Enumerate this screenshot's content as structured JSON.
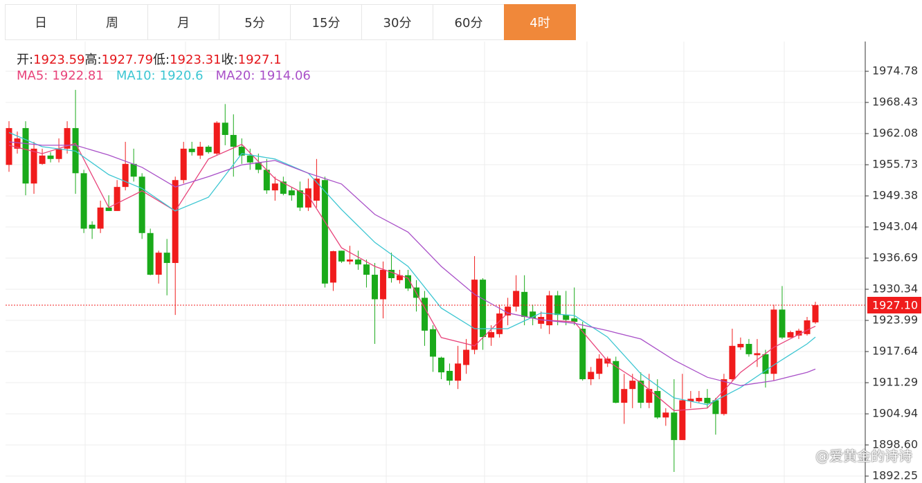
{
  "tabs": {
    "items": [
      "日",
      "周",
      "月",
      "5分",
      "15分",
      "30分",
      "60分",
      "4时"
    ],
    "active": 7
  },
  "header": {
    "ohlc": [
      {
        "label": "开:",
        "value": 1923.59
      },
      {
        "label": "高:",
        "value": 1927.79
      },
      {
        "label": "低:",
        "value": 1923.31
      },
      {
        "label": "收:",
        "value": 1927.1
      }
    ]
  },
  "watermark": "@爱黄金的诗诗",
  "chart_data": {
    "type": "candlestick",
    "up_color": "#f01c1c",
    "down_color": "#1aaa1a",
    "ylim": [
      1890.84,
      1980.85
    ],
    "yticks": [
      1974.78,
      1968.43,
      1962.08,
      1955.73,
      1949.38,
      1943.04,
      1936.69,
      1930.34,
      1923.99,
      1917.64,
      1911.29,
      1904.94,
      {
        "value": 1898.6,
        "label": "1898.60"
      },
      1892.25
    ],
    "grid": true,
    "last_price": {
      "value": 1927.1,
      "label": "1927.10",
      "color": "#f01c1c"
    },
    "candles": [
      [
        1955.7,
        1963.2,
        1964.6,
        1954.3
      ],
      [
        1959.0,
        1961.1,
        1962.5,
        1958.0
      ],
      [
        1963.2,
        1951.9,
        1964.6,
        1949.5
      ],
      [
        1951.9,
        1959.0,
        1960.4,
        1949.8
      ],
      [
        1955.9,
        1957.6,
        1959.0,
        1955.7
      ],
      [
        1957.6,
        1956.9,
        1958.3,
        1956.2
      ],
      [
        1956.9,
        1959.0,
        1961.1,
        1956.2
      ],
      [
        1959.0,
        1963.2,
        1964.6,
        1958.0
      ],
      [
        1963.2,
        1954.0,
        1971.0,
        1949.8
      ],
      [
        1954.0,
        1942.7,
        1954.7,
        1941.8
      ],
      [
        1943.5,
        1942.7,
        1944.2,
        1940.6
      ],
      [
        1942.7,
        1947.0,
        1948.4,
        1941.8
      ],
      [
        1947.0,
        1946.3,
        1949.5,
        1946.3
      ],
      [
        1946.3,
        1951.2,
        1952.6,
        1946.3
      ],
      [
        1951.2,
        1955.9,
        1960.4,
        1950.5
      ],
      [
        1955.9,
        1953.3,
        1959.0,
        1952.3
      ],
      [
        1953.3,
        1941.8,
        1954.0,
        1940.6
      ],
      [
        1941.8,
        1933.3,
        1942.7,
        1933.2
      ],
      [
        1933.3,
        1937.8,
        1938.2,
        1931.5
      ],
      [
        1937.8,
        1935.7,
        1940.6,
        1929.1
      ],
      [
        1935.7,
        1952.6,
        1953.3,
        1925.1
      ],
      [
        1952.6,
        1959.0,
        1960.4,
        1951.9
      ],
      [
        1959.0,
        1958.3,
        1960.4,
        1957.6
      ],
      [
        1957.6,
        1959.4,
        1960.4,
        1956.9
      ],
      [
        1959.4,
        1958.3,
        1959.7,
        1958.0
      ],
      [
        1958.0,
        1964.3,
        1964.6,
        1957.6
      ],
      [
        1964.3,
        1961.8,
        1968.1,
        1959.7
      ],
      [
        1961.8,
        1959.4,
        1966.0,
        1953.3
      ],
      [
        1959.4,
        1957.6,
        1961.1,
        1955.9
      ],
      [
        1957.6,
        1956.2,
        1959.0,
        1954.7
      ],
      [
        1956.2,
        1954.7,
        1958.0,
        1954.0
      ],
      [
        1954.7,
        1950.5,
        1956.9,
        1949.8
      ],
      [
        1950.5,
        1951.9,
        1953.3,
        1948.4
      ],
      [
        1952.3,
        1949.8,
        1953.3,
        1949.5
      ],
      [
        1950.5,
        1949.5,
        1951.2,
        1948.4
      ],
      [
        1950.5,
        1947.0,
        1952.3,
        1946.3
      ],
      [
        1947.0,
        1950.9,
        1952.9,
        1946.3
      ],
      [
        1948.4,
        1952.9,
        1956.9,
        1947.0
      ],
      [
        1952.6,
        1931.5,
        1953.3,
        1930.7
      ],
      [
        1931.7,
        1938.1,
        1938.2,
        1930.0
      ],
      [
        1938.2,
        1936.0,
        1938.2,
        1935.7
      ],
      [
        1936.0,
        1936.4,
        1939.2,
        1935.4
      ],
      [
        1936.4,
        1935.4,
        1938.2,
        1934.3
      ],
      [
        1935.4,
        1933.3,
        1936.4,
        1930.7
      ],
      [
        1933.3,
        1928.3,
        1935.7,
        1919.2
      ],
      [
        1928.3,
        1934.3,
        1936.0,
        1924.4
      ],
      [
        1934.3,
        1932.6,
        1937.8,
        1931.7
      ],
      [
        1932.2,
        1933.2,
        1934.3,
        1931.5
      ],
      [
        1933.2,
        1930.5,
        1934.3,
        1930.0
      ],
      [
        1930.7,
        1928.6,
        1932.2,
        1925.8
      ],
      [
        1928.6,
        1921.9,
        1930.0,
        1918.8
      ],
      [
        1922.2,
        1916.6,
        1923.0,
        1913.5
      ],
      [
        1916.4,
        1913.4,
        1916.6,
        1912.0
      ],
      [
        1913.7,
        1911.7,
        1915.2,
        1910.8
      ],
      [
        1911.7,
        1915.2,
        1918.8,
        1910.0
      ],
      [
        1914.9,
        1918.0,
        1920.2,
        1913.1
      ],
      [
        1918.0,
        1932.3,
        1937.1,
        1917.1
      ],
      [
        1932.3,
        1920.6,
        1932.6,
        1918.0
      ],
      [
        1920.5,
        1921.6,
        1923.0,
        1918.8
      ],
      [
        1921.2,
        1925.4,
        1927.2,
        1920.5
      ],
      [
        1925.0,
        1926.8,
        1928.6,
        1923.0
      ],
      [
        1926.8,
        1930.0,
        1933.2,
        1925.8
      ],
      [
        1929.8,
        1924.7,
        1933.2,
        1923.0
      ],
      [
        1925.8,
        1924.4,
        1927.2,
        1923.0
      ],
      [
        1923.3,
        1924.7,
        1925.8,
        1922.3
      ],
      [
        1923.0,
        1929.1,
        1930.0,
        1921.2
      ],
      [
        1929.1,
        1925.1,
        1930.0,
        1923.0
      ],
      [
        1925.1,
        1924.1,
        1930.0,
        1923.0
      ],
      [
        1924.4,
        1923.7,
        1930.7,
        1923.0
      ],
      [
        1922.3,
        1912.0,
        1923.7,
        1911.7
      ],
      [
        1912.0,
        1913.5,
        1914.5,
        1910.8
      ],
      [
        1913.1,
        1916.2,
        1917.1,
        1912.0
      ],
      [
        1915.2,
        1916.2,
        1916.6,
        1914.5
      ],
      [
        1915.7,
        1907.2,
        1916.6,
        1907.1
      ],
      [
        1907.2,
        1910.0,
        1913.1,
        1902.9
      ],
      [
        1910.0,
        1911.7,
        1913.1,
        1906.1
      ],
      [
        1911.7,
        1907.2,
        1913.4,
        1906.1
      ],
      [
        1907.2,
        1910.0,
        1913.1,
        1906.1
      ],
      [
        1909.6,
        1904.2,
        1912.0,
        1903.9
      ],
      [
        1904.2,
        1905.2,
        1906.1,
        1902.5
      ],
      [
        1905.2,
        1899.6,
        1912.0,
        1893.1
      ],
      [
        1899.6,
        1907.7,
        1913.1,
        1899.6
      ],
      [
        1907.5,
        1908.0,
        1909.6,
        1906.1
      ],
      [
        1907.5,
        1908.2,
        1909.6,
        1907.1
      ],
      [
        1908.2,
        1907.1,
        1910.0,
        1906.1
      ],
      [
        1907.7,
        1904.9,
        1908.2,
        1900.7
      ],
      [
        1904.9,
        1912.0,
        1913.1,
        1904.6
      ],
      [
        1912.0,
        1918.8,
        1922.3,
        1911.7
      ],
      [
        1918.5,
        1919.2,
        1920.5,
        1918.0
      ],
      [
        1919.2,
        1917.1,
        1920.2,
        1916.6
      ],
      [
        1916.9,
        1917.3,
        1920.2,
        1914.5
      ],
      [
        1917.1,
        1913.1,
        1918.0,
        1910.3
      ],
      [
        1913.1,
        1926.2,
        1927.2,
        1911.7
      ],
      [
        1926.2,
        1920.5,
        1931.0,
        1920.2
      ],
      [
        1920.5,
        1921.6,
        1921.9,
        1920.5
      ],
      [
        1920.9,
        1921.9,
        1922.3,
        1920.2
      ],
      [
        1921.2,
        1924.0,
        1924.7,
        1920.9
      ],
      [
        1923.59,
        1927.1,
        1927.79,
        1923.31
      ]
    ],
    "series": [
      {
        "name": "MA5:",
        "color": "#e8437a",
        "current": 1922.81,
        "x": [
          0,
          4,
          8,
          12,
          16,
          20,
          24,
          28,
          32,
          36,
          40,
          44,
          48,
          52,
          56,
          60,
          64,
          68,
          72,
          76,
          80,
          84,
          88,
          92,
          96,
          97
        ],
        "values": [
          1959.7,
          1958.0,
          1960.1,
          1947.0,
          1950.4,
          1946.3,
          1956.9,
          1959.9,
          1952.9,
          1949.4,
          1938.8,
          1935.0,
          1932.6,
          1920.5,
          1918.8,
          1925.5,
          1924.1,
          1923.7,
          1915.7,
          1911.3,
          1905.6,
          1906.1,
          1913.4,
          1918.5,
          1922.0,
          1922.81
        ]
      },
      {
        "name": "MA10:",
        "color": "#3cc6d2",
        "current": 1920.6,
        "x": [
          0,
          4,
          8,
          12,
          16,
          20,
          24,
          28,
          32,
          36,
          40,
          44,
          48,
          52,
          56,
          60,
          64,
          68,
          72,
          76,
          80,
          84,
          88,
          92,
          96,
          97
        ],
        "values": [
          1962.3,
          1959.4,
          1958.5,
          1953.7,
          1950.9,
          1946.3,
          1949.1,
          1958.0,
          1956.9,
          1954.0,
          1946.6,
          1939.9,
          1935.0,
          1926.5,
          1922.3,
          1922.3,
          1925.5,
          1925.0,
          1920.6,
          1913.1,
          1908.2,
          1906.8,
          1910.3,
          1914.9,
          1919.2,
          1920.6
        ]
      },
      {
        "name": "MA20:",
        "color": "#a950c8",
        "current": 1914.06,
        "x": [
          0,
          4,
          8,
          12,
          16,
          20,
          24,
          28,
          32,
          36,
          40,
          44,
          48,
          52,
          56,
          60,
          64,
          68,
          72,
          76,
          80,
          84,
          88,
          92,
          96,
          97
        ],
        "values": [
          1960.4,
          1959.7,
          1959.7,
          1957.7,
          1955.2,
          1951.2,
          1953.3,
          1955.7,
          1956.6,
          1954.0,
          1951.8,
          1945.6,
          1942.0,
          1935.0,
          1929.3,
          1925.5,
          1924.1,
          1923.4,
          1921.9,
          1920.2,
          1915.9,
          1912.4,
          1910.7,
          1911.7,
          1913.4,
          1914.06
        ]
      }
    ]
  }
}
